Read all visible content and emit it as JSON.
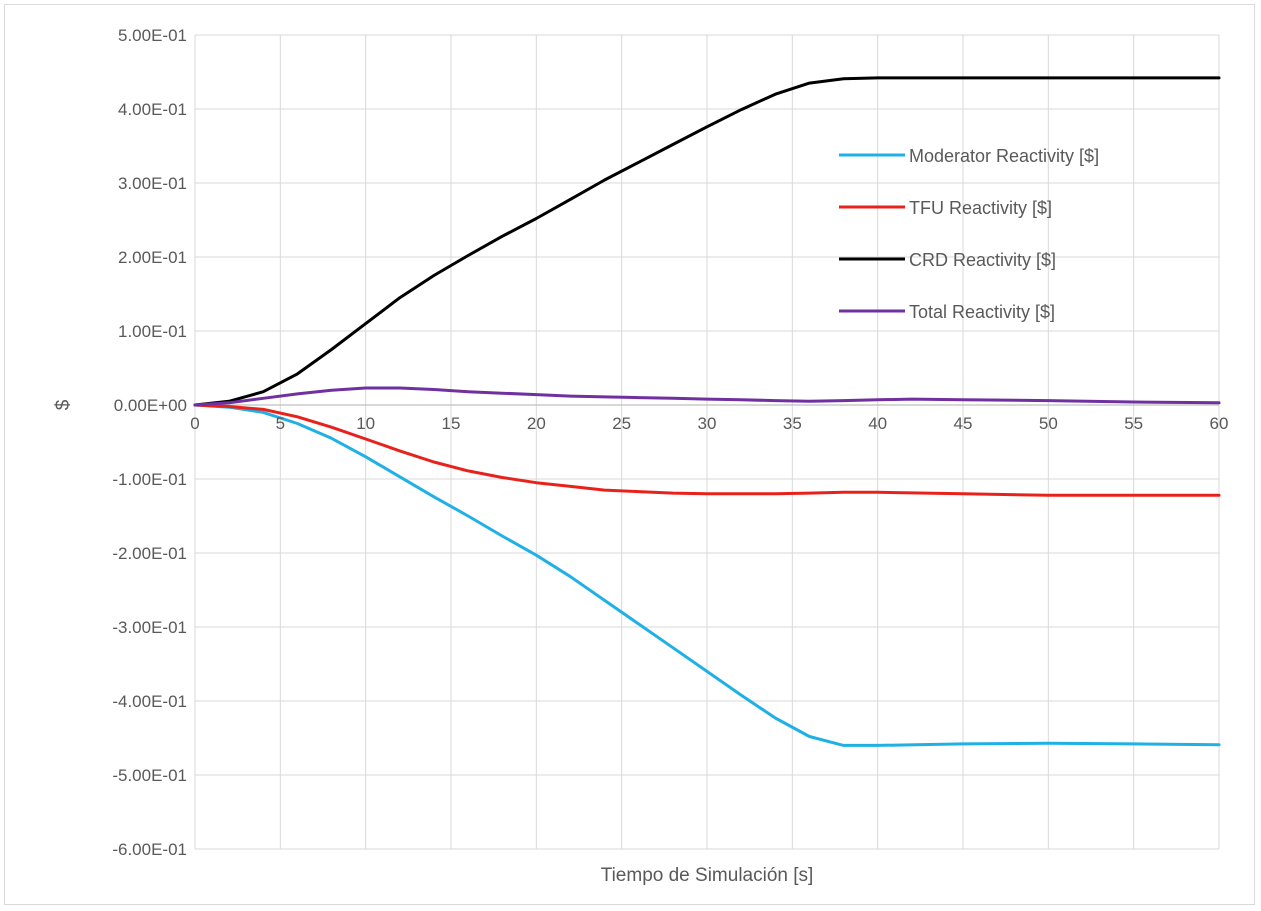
{
  "chart_data": {
    "type": "line",
    "title": "",
    "xlabel": "Tiempo de Simulación [s]",
    "ylabel": "$",
    "xlim": [
      0,
      60
    ],
    "ylim": [
      -0.6,
      0.5
    ],
    "x_ticks": [
      0,
      5,
      10,
      15,
      20,
      25,
      30,
      35,
      40,
      45,
      50,
      55,
      60
    ],
    "x_tick_labels": [
      "0",
      "5",
      "10",
      "15",
      "20",
      "25",
      "30",
      "35",
      "40",
      "45",
      "50",
      "55",
      "60"
    ],
    "y_ticks": [
      0.5,
      0.4,
      0.3,
      0.2,
      0.1,
      0.0,
      -0.1,
      -0.2,
      -0.3,
      -0.4,
      -0.5,
      -0.6
    ],
    "y_tick_labels": [
      "5.00E-01",
      "4.00E-01",
      "3.00E-01",
      "2.00E-01",
      "1.00E-01",
      "0.00E+00",
      "-1.00E-01",
      "-2.00E-01",
      "-3.00E-01",
      "-4.00E-01",
      "-5.00E-01",
      "-6.00E-01"
    ],
    "grid": true,
    "legend_position": "right",
    "series": [
      {
        "name": "Moderator Reactivity [$]",
        "color": "#1fb0e6",
        "x": [
          0,
          2,
          4,
          6,
          8,
          10,
          12,
          14,
          16,
          18,
          20,
          22,
          24,
          26,
          28,
          30,
          32,
          34,
          36,
          38,
          40,
          45,
          50,
          55,
          60
        ],
        "y": [
          0,
          -0.003,
          -0.01,
          -0.025,
          -0.045,
          -0.07,
          -0.097,
          -0.124,
          -0.15,
          -0.177,
          -0.203,
          -0.232,
          -0.264,
          -0.296,
          -0.328,
          -0.36,
          -0.392,
          -0.423,
          -0.448,
          -0.46,
          -0.46,
          -0.458,
          -0.457,
          -0.458,
          -0.459
        ]
      },
      {
        "name": "TFU Reactivity [$]",
        "color": "#e8221b",
        "x": [
          0,
          2,
          4,
          6,
          8,
          10,
          12,
          14,
          16,
          18,
          20,
          22,
          24,
          26,
          28,
          30,
          32,
          34,
          36,
          38,
          40,
          45,
          50,
          55,
          60
        ],
        "y": [
          0,
          -0.002,
          -0.006,
          -0.016,
          -0.03,
          -0.046,
          -0.062,
          -0.077,
          -0.089,
          -0.098,
          -0.105,
          -0.11,
          -0.115,
          -0.117,
          -0.119,
          -0.12,
          -0.12,
          -0.12,
          -0.119,
          -0.118,
          -0.118,
          -0.12,
          -0.122,
          -0.122,
          -0.122
        ]
      },
      {
        "name": "CRD Reactivity [$]",
        "color": "#000000",
        "x": [
          0,
          2,
          4,
          6,
          8,
          10,
          12,
          14,
          16,
          18,
          20,
          22,
          24,
          26,
          28,
          30,
          32,
          34,
          36,
          38,
          40,
          45,
          50,
          55,
          60
        ],
        "y": [
          0,
          0.005,
          0.018,
          0.042,
          0.075,
          0.11,
          0.145,
          0.175,
          0.202,
          0.228,
          0.252,
          0.278,
          0.304,
          0.328,
          0.352,
          0.376,
          0.399,
          0.42,
          0.435,
          0.441,
          0.442,
          0.442,
          0.442,
          0.442,
          0.442
        ]
      },
      {
        "name": "Total Reactivity [$]",
        "color": "#7030a0",
        "x": [
          0,
          2,
          4,
          6,
          8,
          10,
          12,
          14,
          16,
          18,
          20,
          22,
          24,
          26,
          28,
          30,
          32,
          34,
          36,
          38,
          40,
          42,
          45,
          50,
          55,
          60
        ],
        "y": [
          0,
          0.003,
          0.009,
          0.015,
          0.02,
          0.023,
          0.023,
          0.021,
          0.018,
          0.016,
          0.014,
          0.012,
          0.011,
          0.01,
          0.009,
          0.008,
          0.007,
          0.006,
          0.005,
          0.006,
          0.007,
          0.008,
          0.007,
          0.006,
          0.004,
          0.003
        ]
      }
    ]
  }
}
